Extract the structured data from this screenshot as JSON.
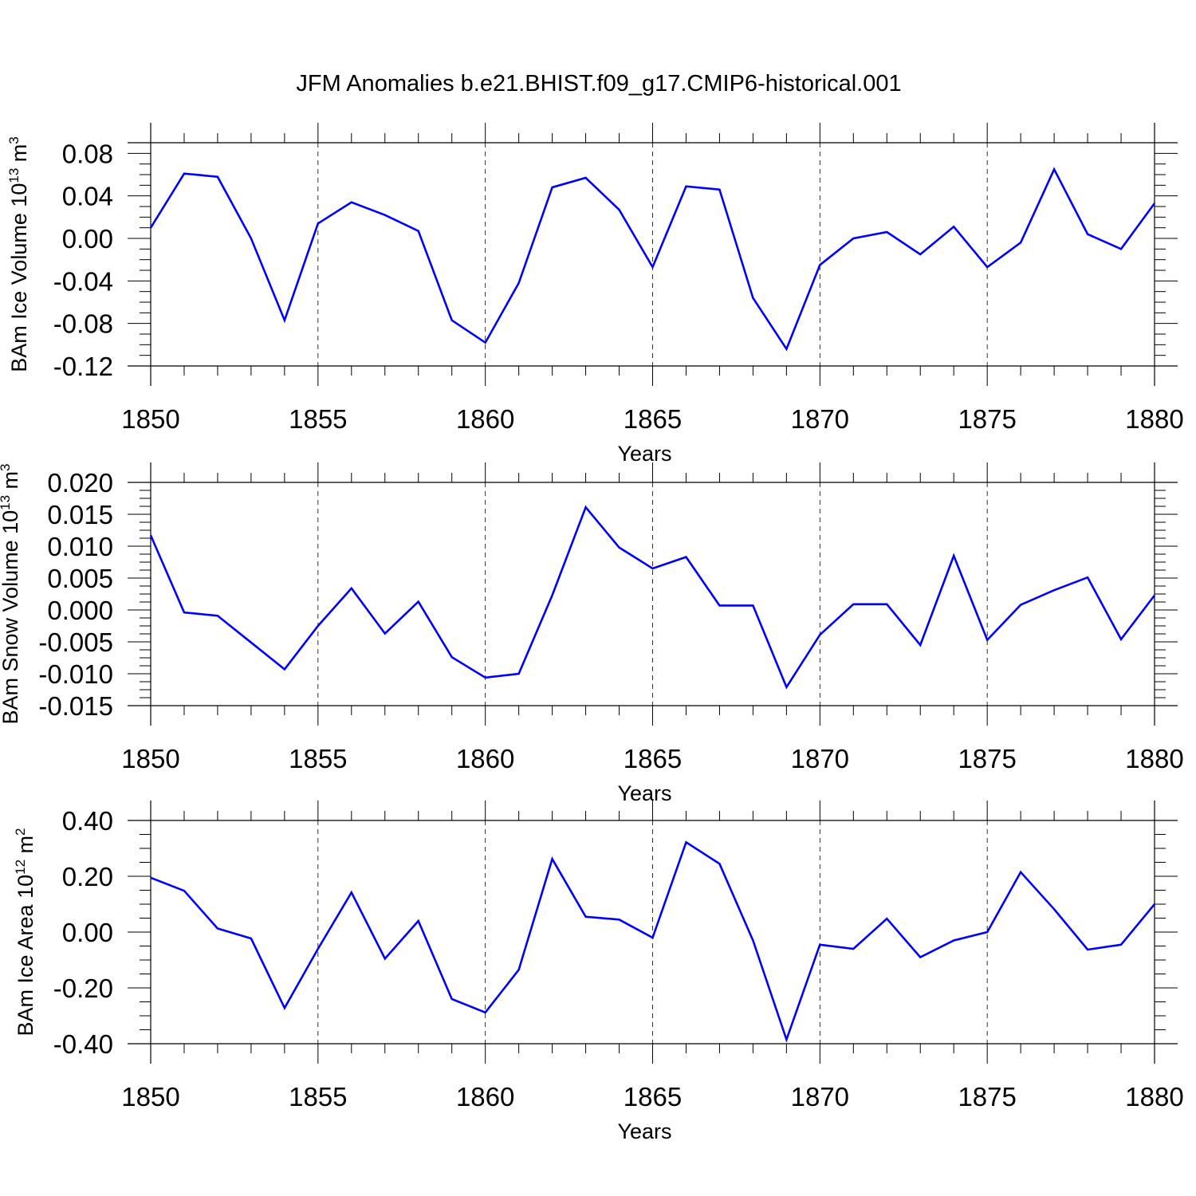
{
  "figure_title": "JFM Anomalies b.e21.BHIST.f09_g17.CMIP6-historical.001",
  "colors": {
    "line": "#0000ff",
    "axes": "#000000",
    "grid": "#000000",
    "background": "#ffffff"
  },
  "chart_data": [
    {
      "type": "line",
      "ylabel_main": "BAm Ice Volume 10",
      "ylabel_exp": "13",
      "ylabel_unit": " m",
      "ylabel_unit_exp": "3",
      "xlabel": "Years",
      "xlim": [
        1850,
        1880
      ],
      "ylim": [
        -0.12,
        0.09
      ],
      "x_ticks": [
        "1850",
        "1855",
        "1860",
        "1865",
        "1870",
        "1875",
        "1880"
      ],
      "y_ticks": [
        "0.08",
        "0.04",
        "0.00",
        "-0.04",
        "-0.08",
        "-0.12"
      ],
      "grid": "vertical dashed at major x ticks",
      "series": [
        {
          "x": [
            1850,
            1851,
            1852,
            1853,
            1854,
            1855,
            1856,
            1857,
            1858,
            1859,
            1860,
            1861,
            1862,
            1863,
            1864,
            1865,
            1866,
            1867,
            1868,
            1869,
            1870,
            1871,
            1872,
            1873,
            1874,
            1875,
            1876,
            1877,
            1878,
            1879,
            1880
          ],
          "values": [
            0.01,
            0.061,
            0.058,
            0.0,
            -0.077,
            0.014,
            0.034,
            0.022,
            0.007,
            -0.077,
            -0.098,
            -0.042,
            0.048,
            0.057,
            0.027,
            -0.027,
            0.049,
            0.046,
            -0.056,
            -0.104,
            -0.025,
            0.0,
            0.006,
            -0.015,
            0.011,
            -0.027,
            -0.004,
            0.065,
            0.004,
            -0.01,
            0.033
          ]
        }
      ]
    },
    {
      "type": "line",
      "ylabel_main": "BAm Snow Volume 10",
      "ylabel_exp": "13",
      "ylabel_unit": " m",
      "ylabel_unit_exp": "3",
      "xlabel": "Years",
      "xlim": [
        1850,
        1880
      ],
      "ylim": [
        -0.015,
        0.02
      ],
      "x_ticks": [
        "1850",
        "1855",
        "1860",
        "1865",
        "1870",
        "1875",
        "1880"
      ],
      "y_ticks": [
        "0.020",
        "0.015",
        "0.010",
        "0.005",
        "0.000",
        "-0.005",
        "-0.010",
        "-0.015"
      ],
      "grid": "vertical dashed at major x ticks",
      "series": [
        {
          "x": [
            1850,
            1851,
            1852,
            1853,
            1854,
            1855,
            1856,
            1857,
            1858,
            1859,
            1860,
            1861,
            1862,
            1863,
            1864,
            1865,
            1866,
            1867,
            1868,
            1869,
            1870,
            1871,
            1872,
            1873,
            1874,
            1875,
            1876,
            1877,
            1878,
            1879,
            1880
          ],
          "values": [
            0.0117,
            -0.0004,
            -0.0009,
            -0.0051,
            -0.0093,
            -0.0025,
            0.0034,
            -0.0037,
            0.0013,
            -0.0074,
            -0.0106,
            -0.01,
            0.0023,
            0.0161,
            0.0098,
            0.0065,
            0.0083,
            0.0007,
            0.0007,
            -0.0121,
            -0.0039,
            0.0009,
            0.0009,
            -0.0055,
            0.0085,
            -0.0047,
            0.0008,
            0.0031,
            0.0051,
            -0.0046,
            0.0023
          ]
        }
      ]
    },
    {
      "type": "line",
      "ylabel_main": "BAm Ice Area 10",
      "ylabel_exp": "12",
      "ylabel_unit": " m",
      "ylabel_unit_exp": "2",
      "xlabel": "Years",
      "xlim": [
        1850,
        1880
      ],
      "ylim": [
        -0.4,
        0.4
      ],
      "x_ticks": [
        "1850",
        "1855",
        "1860",
        "1865",
        "1870",
        "1875",
        "1880"
      ],
      "y_ticks": [
        "0.40",
        "0.20",
        "0.00",
        "-0.20",
        "-0.40"
      ],
      "grid": "vertical dashed at major x ticks",
      "series": [
        {
          "x": [
            1850,
            1851,
            1852,
            1853,
            1854,
            1855,
            1856,
            1857,
            1858,
            1859,
            1860,
            1861,
            1862,
            1863,
            1864,
            1865,
            1866,
            1867,
            1868,
            1869,
            1870,
            1871,
            1872,
            1873,
            1874,
            1875,
            1876,
            1877,
            1878,
            1879,
            1880
          ],
          "values": [
            0.195,
            0.148,
            0.013,
            -0.023,
            -0.272,
            -0.06,
            0.142,
            -0.095,
            0.04,
            -0.24,
            -0.288,
            -0.135,
            0.262,
            0.055,
            0.045,
            -0.02,
            0.322,
            0.245,
            -0.03,
            -0.385,
            -0.045,
            -0.06,
            0.048,
            -0.09,
            -0.03,
            0.0,
            0.215,
            0.082,
            -0.063,
            -0.045,
            0.1
          ]
        }
      ]
    }
  ]
}
